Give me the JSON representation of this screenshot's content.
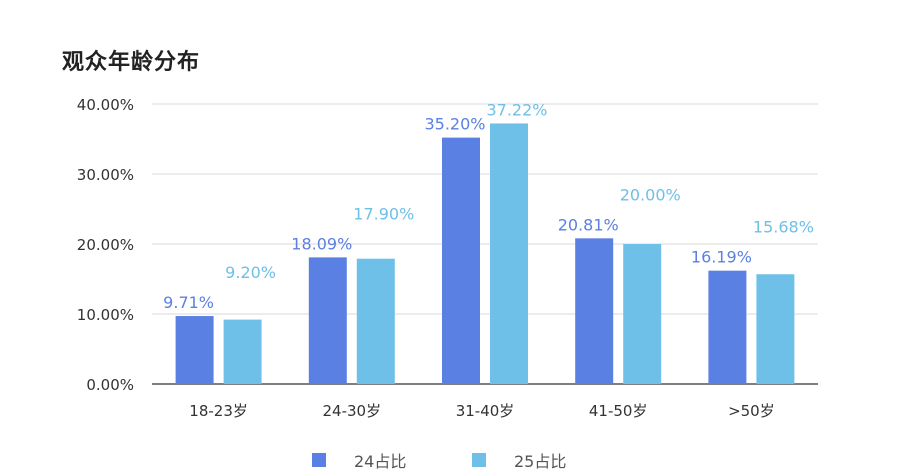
{
  "title": "观众年龄分布",
  "colors": {
    "series_24": "#5B80E3",
    "series_25": "#6FC0E8",
    "axis": "#333333",
    "grid": "#D9D9D9",
    "tick_text": "#333333"
  },
  "chart_data": {
    "type": "bar",
    "title": "观众年龄分布",
    "xlabel": "",
    "ylabel": "",
    "ylim": [
      0,
      40
    ],
    "y_ticks": [
      "0.00%",
      "10.00%",
      "20.00%",
      "30.00%",
      "40.00%"
    ],
    "y_tick_values": [
      0,
      10,
      20,
      30,
      40
    ],
    "grid": true,
    "legend_position": "bottom",
    "categories": [
      "18-23岁",
      "24-30岁",
      "31-40岁",
      "41-50岁",
      ">50岁"
    ],
    "series": [
      {
        "name": "24占比",
        "values": [
          9.71,
          18.09,
          35.2,
          20.81,
          16.19
        ],
        "labels": [
          "9.71%",
          "18.09%",
          "35.20%",
          "20.81%",
          "16.19%"
        ]
      },
      {
        "name": "25占比",
        "values": [
          9.2,
          17.9,
          37.22,
          20.0,
          15.68
        ],
        "labels": [
          "9.20%",
          "17.90%",
          "37.22%",
          "20.00%",
          "15.68%"
        ]
      }
    ]
  }
}
